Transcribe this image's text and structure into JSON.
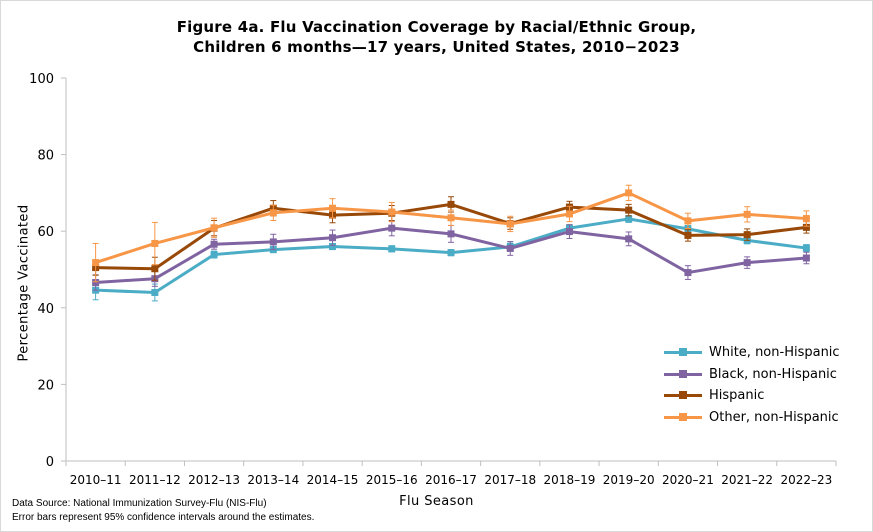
{
  "chart_data": {
    "type": "line",
    "title_lines": [
      "Figure 4a. Flu Vaccination Coverage by Racial/Ethnic Group,",
      "Children 6 months—17 years, United States, 2010−2023"
    ],
    "xlabel": "Flu Season",
    "ylabel": "Percentage Vaccinated",
    "ylim": [
      0,
      100
    ],
    "yticks": [
      "0",
      "20",
      "40",
      "60",
      "80",
      "100"
    ],
    "categories": [
      "2010–11",
      "2011–12",
      "2012–13",
      "2013–14",
      "2014–15",
      "2015–16",
      "2016–17",
      "2017–18",
      "2018–19",
      "2019–20",
      "2020–21",
      "2021–22",
      "2022–23"
    ],
    "grid": false,
    "legend": "bottom-right",
    "error_bars": true,
    "series": [
      {
        "name": "White, non-Hispanic",
        "color": "#4BACC6",
        "values": [
          44.6,
          44.0,
          53.9,
          55.2,
          56.0,
          55.4,
          54.4,
          55.9,
          60.8,
          63.2,
          60.6,
          57.6,
          55.6
        ],
        "lower": [
          42.1,
          41.8,
          53.0,
          54.4,
          55.2,
          54.6,
          53.6,
          54.9,
          59.9,
          62.3,
          59.7,
          56.7,
          54.7
        ],
        "upper": [
          47.1,
          46.2,
          54.8,
          56.0,
          56.8,
          56.2,
          55.2,
          56.9,
          61.7,
          64.1,
          61.5,
          58.5,
          56.5
        ]
      },
      {
        "name": "Black, non-Hispanic",
        "color": "#8064A2",
        "values": [
          46.6,
          47.6,
          56.6,
          57.2,
          58.3,
          60.8,
          59.3,
          55.5,
          59.9,
          58.0,
          49.2,
          51.8,
          53.0
        ],
        "lower": [
          44.6,
          45.6,
          55.3,
          55.2,
          56.3,
          58.8,
          57.1,
          53.7,
          58.1,
          56.2,
          47.4,
          50.3,
          51.5
        ],
        "upper": [
          48.6,
          49.6,
          57.9,
          59.2,
          60.3,
          62.8,
          61.5,
          57.3,
          61.7,
          59.8,
          51.0,
          53.3,
          54.5
        ]
      },
      {
        "name": "Hispanic",
        "color": "#984807",
        "values": [
          50.5,
          50.2,
          60.8,
          66.0,
          64.2,
          64.7,
          67.0,
          62.0,
          66.3,
          65.5,
          58.9,
          59.1,
          61.0
        ],
        "lower": [
          48.5,
          47.2,
          58.8,
          64.0,
          62.2,
          62.7,
          65.0,
          60.5,
          64.8,
          64.0,
          57.4,
          57.6,
          59.5
        ],
        "upper": [
          52.5,
          53.2,
          62.8,
          68.0,
          66.2,
          66.7,
          69.0,
          63.5,
          67.8,
          67.0,
          60.4,
          60.6,
          62.5
        ]
      },
      {
        "name": "Other, non-Hispanic",
        "color": "#F79646",
        "values": [
          51.8,
          56.8,
          60.9,
          64.8,
          66.0,
          65.0,
          63.5,
          61.9,
          64.5,
          70.0,
          62.7,
          64.4,
          63.3
        ],
        "lower": [
          46.8,
          51.3,
          58.4,
          62.8,
          63.5,
          62.5,
          61.5,
          59.9,
          62.5,
          68.0,
          60.7,
          62.4,
          61.3
        ],
        "upper": [
          56.8,
          62.3,
          63.4,
          66.8,
          68.5,
          67.5,
          65.5,
          63.9,
          66.5,
          72.0,
          64.7,
          66.4,
          65.3
        ]
      }
    ],
    "footnotes": [
      "Data Source: National Immunization Survey-Flu (NIS-Flu)",
      "Error bars represent 95% confidence intervals around the estimates."
    ]
  }
}
